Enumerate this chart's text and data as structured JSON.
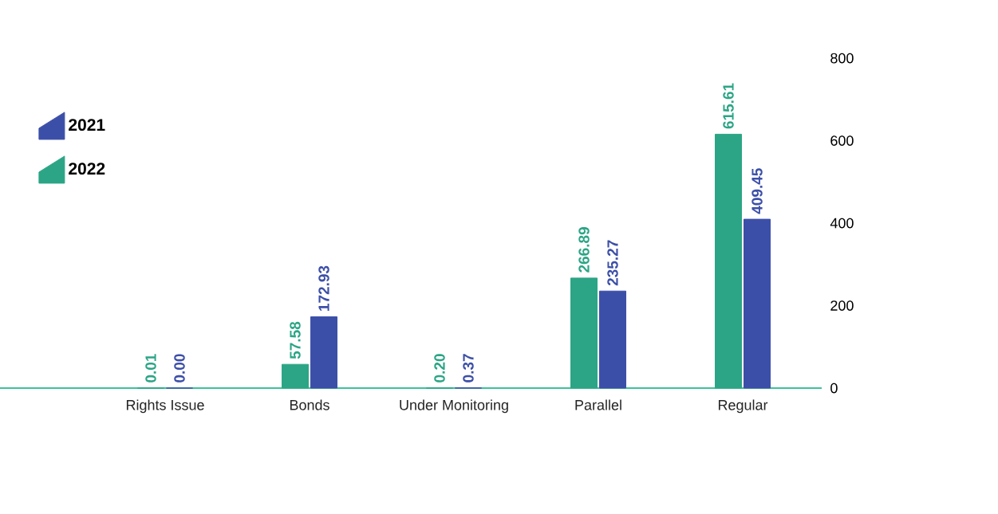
{
  "chart_data": {
    "type": "bar",
    "categories": [
      "Rights Issue",
      "Bonds",
      "Under Monitoring",
      "Parallel",
      "Regular"
    ],
    "series": [
      {
        "name": "2022",
        "color": "#2ba585",
        "values": [
          0.01,
          57.58,
          0.2,
          266.89,
          615.61
        ],
        "value_labels": [
          "0.01",
          "57.58",
          "0.20",
          "266.89",
          "615.61"
        ]
      },
      {
        "name": "2021",
        "color": "#3c4fa8",
        "values": [
          0,
          172.93,
          0.37,
          235.27,
          409.45
        ],
        "value_labels": [
          "0.00",
          "172.93",
          "0.37",
          "235.27",
          "409.45"
        ]
      }
    ],
    "ylim": [
      0,
      800
    ],
    "yticks": [
      0,
      200,
      400,
      600,
      800
    ],
    "legend": "top left"
  }
}
